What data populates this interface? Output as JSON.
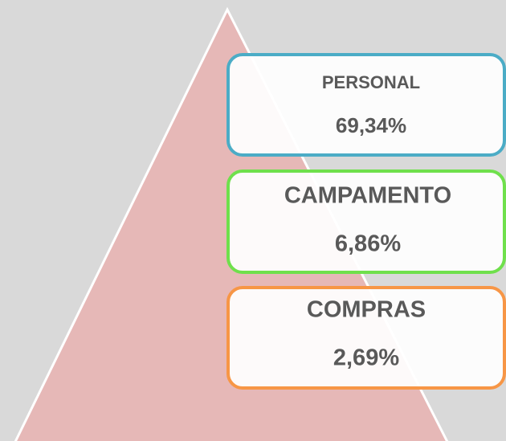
{
  "items": [
    {
      "label": "PERSONAL",
      "value": "69,34%"
    },
    {
      "label": "CAMPAMENTO",
      "value": "6,86%"
    },
    {
      "label": "COMPRAS",
      "value": "2,69%"
    }
  ]
}
